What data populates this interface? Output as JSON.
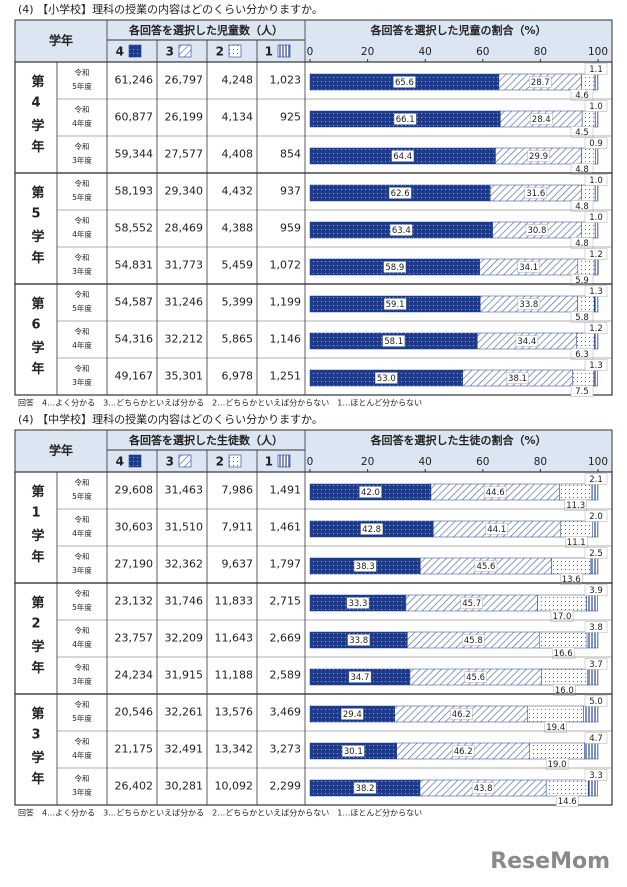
{
  "sections": [
    {
      "title": "(4) 【小学校】理科の授業の内容はどのくらい分かりますか。",
      "table": {
        "header": {
          "grade": "学年",
          "counts_title": "各回答を選択した児童数（人）",
          "ratio_title": "各回答を選択した児童の割合（%）",
          "answers": [
            "4",
            "3",
            "2",
            "1"
          ]
        },
        "xlim": [
          0,
          100
        ],
        "xticks": [
          0,
          20,
          40,
          60,
          80,
          100
        ],
        "groups": [
          {
            "grade": "第4学年",
            "rows": [
              {
                "era": "令和",
                "year": "5年度",
                "counts": [
                  "61,246",
                  "26,797",
                  "4,248",
                  "1,023"
                ],
                "percents": [
                  65.6,
                  28.7,
                  4.6,
                  1.1
                ],
                "value_labels": [
                  "65.6",
                  "28.7",
                  "4.6",
                  "1.1"
                ]
              },
              {
                "era": "令和",
                "year": "4年度",
                "counts": [
                  "60,877",
                  "26,199",
                  "4,134",
                  "925"
                ],
                "percents": [
                  66.1,
                  28.4,
                  4.5,
                  1.0
                ],
                "value_labels": [
                  "66.1",
                  "28.4",
                  "4.5",
                  "1.0"
                ]
              },
              {
                "era": "令和",
                "year": "3年度",
                "counts": [
                  "59,344",
                  "27,577",
                  "4,408",
                  "854"
                ],
                "percents": [
                  64.4,
                  29.9,
                  4.8,
                  0.9
                ],
                "value_labels": [
                  "64.4",
                  "29.9",
                  "4.8",
                  "0.9"
                ]
              }
            ]
          },
          {
            "grade": "第5学年",
            "rows": [
              {
                "era": "令和",
                "year": "5年度",
                "counts": [
                  "58,193",
                  "29,340",
                  "4,432",
                  "937"
                ],
                "percents": [
                  62.6,
                  31.6,
                  4.8,
                  1.0
                ],
                "value_labels": [
                  "62.6",
                  "31.6",
                  "4.8",
                  "1.0"
                ]
              },
              {
                "era": "令和",
                "year": "4年度",
                "counts": [
                  "58,552",
                  "28,469",
                  "4,388",
                  "959"
                ],
                "percents": [
                  63.4,
                  30.8,
                  4.8,
                  1.0
                ],
                "value_labels": [
                  "63.4",
                  "30.8",
                  "4.8",
                  "1.0"
                ]
              },
              {
                "era": "令和",
                "year": "3年度",
                "counts": [
                  "54,831",
                  "31,773",
                  "5,459",
                  "1,072"
                ],
                "percents": [
                  58.9,
                  34.1,
                  5.9,
                  1.2
                ],
                "value_labels": [
                  "58.9",
                  "34.1",
                  "5.9",
                  "1.2"
                ]
              }
            ]
          },
          {
            "grade": "第6学年",
            "rows": [
              {
                "era": "令和",
                "year": "5年度",
                "counts": [
                  "54,587",
                  "31,246",
                  "5,399",
                  "1,199"
                ],
                "percents": [
                  59.1,
                  33.8,
                  5.8,
                  1.3
                ],
                "value_labels": [
                  "59.1",
                  "33.8",
                  "5.8",
                  "1.3"
                ]
              },
              {
                "era": "令和",
                "year": "4年度",
                "counts": [
                  "54,316",
                  "32,212",
                  "5,865",
                  "1,146"
                ],
                "percents": [
                  58.1,
                  34.4,
                  6.3,
                  1.2
                ],
                "value_labels": [
                  "58.1",
                  "34.4",
                  "6.3",
                  "1.2"
                ]
              },
              {
                "era": "令和",
                "year": "3年度",
                "counts": [
                  "49,167",
                  "35,301",
                  "6,978",
                  "1,251"
                ],
                "percents": [
                  53.0,
                  38.1,
                  7.5,
                  1.3
                ],
                "value_labels": [
                  "53.0",
                  "38.1",
                  "7.5",
                  "1.3"
                ]
              }
            ]
          }
        ]
      },
      "footnote": "回答　4…よく分かる　3…どちらかといえば分かる　2…どちらかといえば分からない　1…ほとんど分からない"
    },
    {
      "title": "(4) 【中学校】理科の授業の内容はどのくらい分かりますか。",
      "table": {
        "header": {
          "grade": "学年",
          "counts_title": "各回答を選択した生徒数（人）",
          "ratio_title": "各回答を選択した生徒の割合（%）",
          "answers": [
            "4",
            "3",
            "2",
            "1"
          ]
        },
        "xlim": [
          0,
          100
        ],
        "xticks": [
          0,
          20,
          40,
          60,
          80,
          100
        ],
        "groups": [
          {
            "grade": "第1学年",
            "rows": [
              {
                "era": "令和",
                "year": "5年度",
                "counts": [
                  "29,608",
                  "31,463",
                  "7,986",
                  "1,491"
                ],
                "percents": [
                  42.0,
                  44.6,
                  11.3,
                  2.1
                ],
                "value_labels": [
                  "42.0",
                  "44.6",
                  "11.3",
                  "2.1"
                ]
              },
              {
                "era": "令和",
                "year": "4年度",
                "counts": [
                  "30,603",
                  "31,510",
                  "7,911",
                  "1,461"
                ],
                "percents": [
                  42.8,
                  44.1,
                  11.1,
                  2.0
                ],
                "value_labels": [
                  "42.8",
                  "44.1",
                  "11.1",
                  "2.0"
                ]
              },
              {
                "era": "令和",
                "year": "3年度",
                "counts": [
                  "27,190",
                  "32,362",
                  "9,637",
                  "1,797"
                ],
                "percents": [
                  38.3,
                  45.6,
                  13.6,
                  2.5
                ],
                "value_labels": [
                  "38.3",
                  "45.6",
                  "13.6",
                  "2.5"
                ]
              }
            ]
          },
          {
            "grade": "第2学年",
            "rows": [
              {
                "era": "令和",
                "year": "5年度",
                "counts": [
                  "23,132",
                  "31,746",
                  "11,833",
                  "2,715"
                ],
                "percents": [
                  33.3,
                  45.7,
                  17.0,
                  3.9
                ],
                "value_labels": [
                  "33.3",
                  "45.7",
                  "17.0",
                  "3.9"
                ]
              },
              {
                "era": "令和",
                "year": "4年度",
                "counts": [
                  "23,757",
                  "32,209",
                  "11,643",
                  "2,669"
                ],
                "percents": [
                  33.8,
                  45.8,
                  16.6,
                  3.8
                ],
                "value_labels": [
                  "33.8",
                  "45.8",
                  "16.6",
                  "3.8"
                ]
              },
              {
                "era": "令和",
                "year": "3年度",
                "counts": [
                  "24,234",
                  "31,915",
                  "11,188",
                  "2,589"
                ],
                "percents": [
                  34.7,
                  45.6,
                  16.0,
                  3.7
                ],
                "value_labels": [
                  "34.7",
                  "45.6",
                  "16.0",
                  "3.7"
                ]
              }
            ]
          },
          {
            "grade": "第3学年",
            "rows": [
              {
                "era": "令和",
                "year": "5年度",
                "counts": [
                  "20,546",
                  "32,261",
                  "13,576",
                  "3,469"
                ],
                "percents": [
                  29.4,
                  46.2,
                  19.4,
                  5.0
                ],
                "value_labels": [
                  "29.4",
                  "46.2",
                  "19.4",
                  "5.0"
                ]
              },
              {
                "era": "令和",
                "year": "4年度",
                "counts": [
                  "21,175",
                  "32,491",
                  "13,342",
                  "3,273"
                ],
                "percents": [
                  30.1,
                  46.2,
                  19.0,
                  4.7
                ],
                "value_labels": [
                  "30.1",
                  "46.2",
                  "19.0",
                  "4.7"
                ]
              },
              {
                "era": "令和",
                "year": "3年度",
                "counts": [
                  "26,402",
                  "30,281",
                  "10,092",
                  "2,299"
                ],
                "percents": [
                  38.2,
                  43.8,
                  14.6,
                  3.3
                ],
                "value_labels": [
                  "38.2",
                  "43.8",
                  "14.6",
                  "3.3"
                ]
              }
            ]
          }
        ]
      },
      "footnote": "回答　4…よく分かる　3…どちらかといえば分かる　2…どちらかといえば分からない　1…ほとんど分からない"
    }
  ],
  "logo": "ReseMom"
}
